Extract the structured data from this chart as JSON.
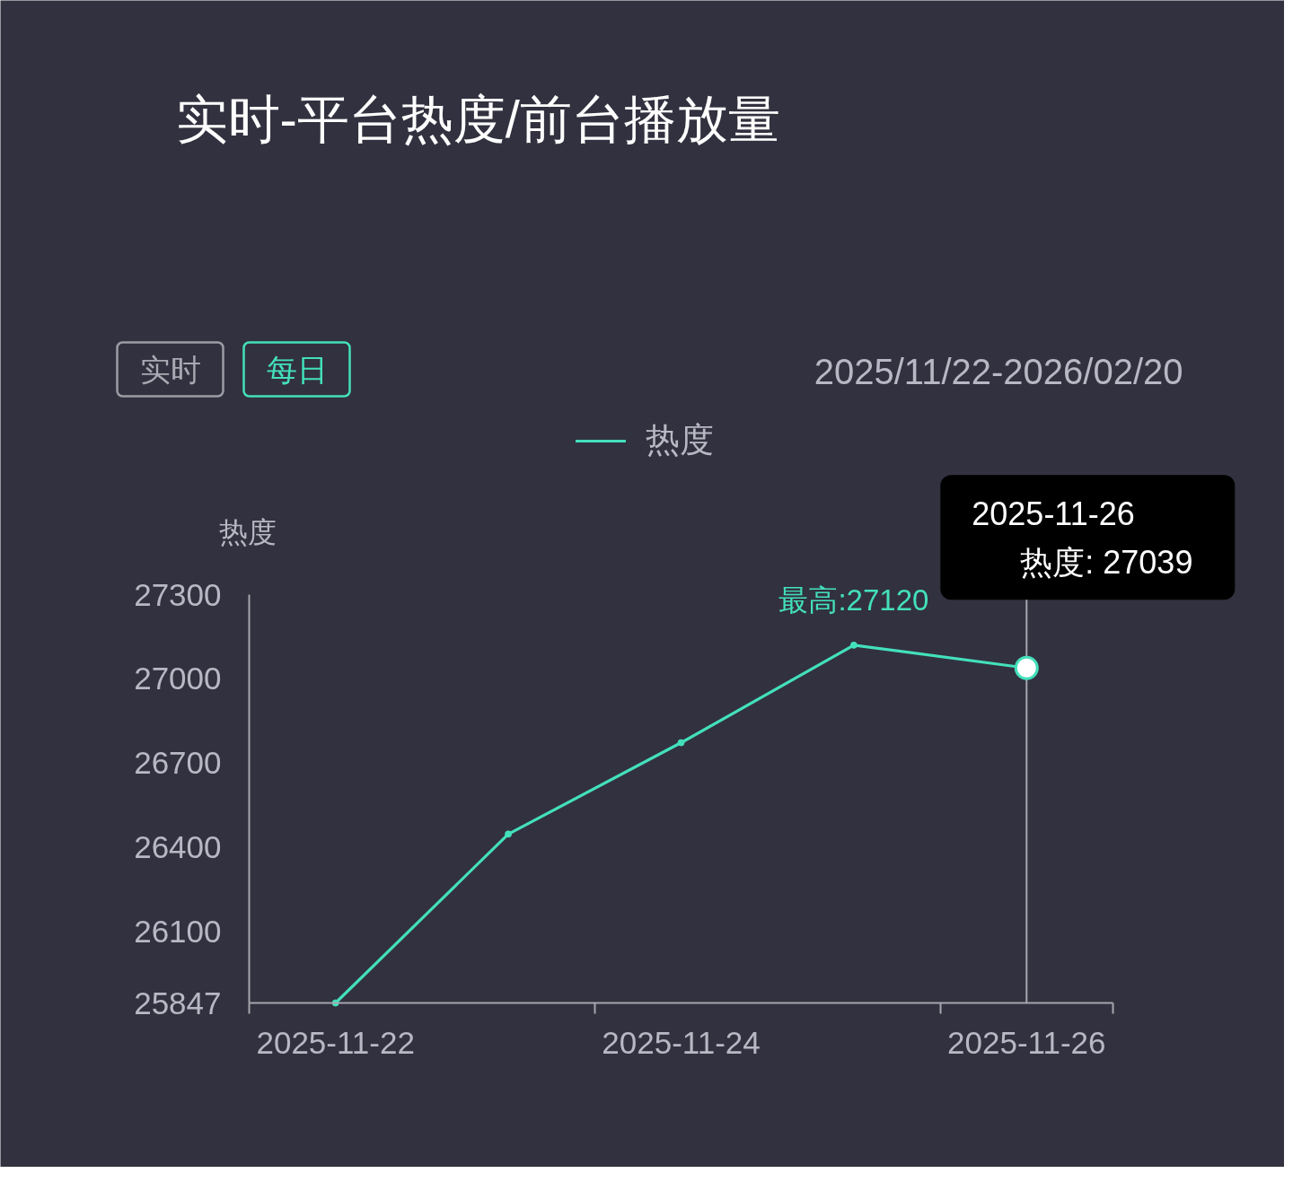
{
  "chart_data": {
    "type": "line",
    "title": "实时-平台热度/前台播放量",
    "ylabel": "热度",
    "categories": [
      "2025-11-22",
      null,
      "2025-11-24",
      null,
      "2025-11-26"
    ],
    "series": [
      {
        "name": "热度",
        "color": "#43e0bc",
        "values": [
          25847,
          26448,
          26773,
          27120,
          27039
        ]
      }
    ],
    "ylim": [
      25847,
      27300
    ],
    "yticks": [
      25847,
      26100,
      26400,
      26700,
      27000,
      27300
    ],
    "grid": false,
    "legend": "top",
    "marker": "circle",
    "line_style": "solid",
    "annotations": [
      "实时",
      "每日",
      "2025/11/22-2026/02/20",
      "2025-11-26",
      "热度: 27039",
      {
        "text": "最高:27120",
        "y": 27120
      }
    ],
    "ref_lines": [
      {
        "axis": "x",
        "value": "2025-11-26",
        "color": "#a6a6ae"
      }
    ]
  }
}
